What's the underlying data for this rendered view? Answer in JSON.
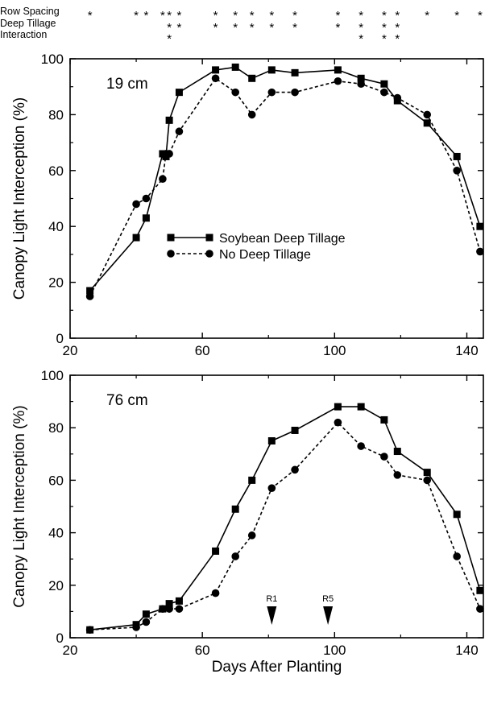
{
  "significance": {
    "rows": [
      {
        "label": "Row Spacing",
        "days": [
          26,
          40,
          43,
          48,
          50,
          53,
          64,
          70,
          75,
          81,
          88,
          101,
          108,
          115,
          119,
          128,
          137,
          144
        ]
      },
      {
        "label": "Deep Tillage",
        "days": [
          50,
          53,
          64,
          70,
          75,
          81,
          88,
          101,
          108,
          115,
          119
        ]
      },
      {
        "label": "Interaction",
        "days": [
          50,
          108,
          115,
          119
        ]
      }
    ],
    "marker": "*"
  },
  "chart_data": [
    {
      "type": "line",
      "panel_label": "19 cm",
      "xlim": [
        20,
        145
      ],
      "ylim": [
        0,
        100
      ],
      "xticks": [
        20,
        60,
        100,
        140
      ],
      "yticks": [
        0,
        20,
        40,
        60,
        80,
        100
      ],
      "xlabel": "",
      "ylabel": "Canopy Light Interception (%)",
      "legend": "center",
      "series": [
        {
          "name": "Soybean Deep Tillage",
          "marker": "square",
          "line": "solid",
          "x": [
            26,
            40,
            43,
            48,
            49,
            50,
            53,
            64,
            70,
            75,
            81,
            88,
            101,
            108,
            115,
            119,
            128,
            137,
            144
          ],
          "y": [
            17,
            36,
            43,
            66,
            65,
            78,
            88,
            96,
            97,
            93,
            96,
            95,
            96,
            93,
            91,
            85,
            77,
            65,
            40
          ]
        },
        {
          "name": "No Deep Tillage",
          "marker": "circle",
          "line": "dashed",
          "x": [
            26,
            40,
            43,
            48,
            49,
            50,
            53,
            64,
            70,
            75,
            81,
            88,
            101,
            108,
            115,
            119,
            128,
            137,
            144
          ],
          "y": [
            15,
            48,
            50,
            57,
            66,
            66,
            74,
            93,
            88,
            80,
            88,
            88,
            92,
            91,
            88,
            86,
            80,
            60,
            31
          ]
        }
      ]
    },
    {
      "type": "line",
      "panel_label": "76 cm",
      "xlim": [
        20,
        145
      ],
      "ylim": [
        0,
        100
      ],
      "xticks": [
        20,
        60,
        100,
        140
      ],
      "yticks": [
        0,
        20,
        40,
        60,
        80,
        100
      ],
      "xlabel": "Days After Planting",
      "ylabel": "Canopy Light Interception (%)",
      "series": [
        {
          "name": "Soybean Deep Tillage",
          "marker": "square",
          "line": "solid",
          "x": [
            26,
            40,
            43,
            48,
            50,
            53,
            64,
            70,
            75,
            81,
            88,
            101,
            108,
            115,
            119,
            128,
            137,
            144
          ],
          "y": [
            3,
            5,
            9,
            11,
            13,
            14,
            33,
            49,
            60,
            75,
            79,
            88,
            88,
            83,
            71,
            63,
            47,
            18
          ]
        },
        {
          "name": "No Deep Tillage",
          "marker": "circle",
          "line": "dashed",
          "x": [
            26,
            40,
            43,
            48,
            50,
            53,
            64,
            70,
            75,
            81,
            88,
            101,
            108,
            115,
            119,
            128,
            137,
            144
          ],
          "y": [
            3,
            4,
            6,
            11,
            11,
            11,
            17,
            31,
            39,
            57,
            64,
            82,
            73,
            69,
            62,
            60,
            31,
            11
          ]
        }
      ],
      "annotations": [
        {
          "label": "R1",
          "x": 81
        },
        {
          "label": "R5",
          "x": 98
        }
      ]
    }
  ]
}
